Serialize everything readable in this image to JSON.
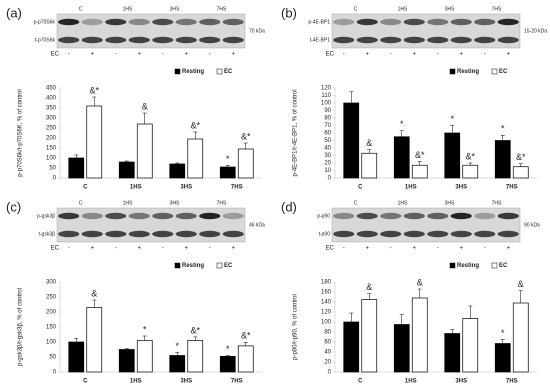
{
  "chart_data": [
    {
      "type": "bar",
      "panel": "(a)",
      "y_label": "p-p70S6k/t-p70S6K, % of control",
      "categories": [
        "C",
        "1HS",
        "3HS",
        "7HS"
      ],
      "series": [
        {
          "name": "Resting",
          "color": "#000000",
          "values": [
            100,
            80,
            70,
            55
          ],
          "errors": [
            15,
            5,
            5,
            8
          ],
          "annotations": [
            null,
            null,
            null,
            "*"
          ]
        },
        {
          "name": "EC",
          "color": "#ffffff",
          "values": [
            360,
            270,
            195,
            145
          ],
          "errors": [
            45,
            55,
            35,
            30
          ],
          "annotations": [
            "&*",
            "&",
            "&*",
            "&*"
          ]
        }
      ],
      "ylim": [
        0,
        450
      ],
      "yticks": [
        0,
        50,
        100,
        150,
        200,
        250,
        300,
        350,
        400,
        450
      ],
      "blot": {
        "rows": [
          "p-p70S6k",
          "t-p70S6k"
        ],
        "size": "70 kDa",
        "groups": [
          "C",
          "1HS",
          "3HS",
          "7HS"
        ],
        "treatment_label": "EC",
        "treatments": [
          "-",
          "+",
          "-",
          "+",
          "-",
          "+",
          "-",
          "+"
        ]
      }
    },
    {
      "type": "bar",
      "panel": "(b)",
      "y_label": "p-4E-BP1/t-4E-BP1, % of control",
      "categories": [
        "C",
        "1HS",
        "3HS",
        "7HS"
      ],
      "series": [
        {
          "name": "Resting",
          "color": "#000000",
          "values": [
            100,
            55,
            60,
            50
          ],
          "errors": [
            15,
            8,
            10,
            7
          ],
          "annotations": [
            null,
            "*",
            "*",
            "*"
          ]
        },
        {
          "name": "EC",
          "color": "#ffffff",
          "values": [
            33,
            17,
            17,
            15
          ],
          "errors": [
            5,
            5,
            3,
            4
          ],
          "annotations": [
            "&",
            "&*",
            "&*",
            "&*"
          ]
        }
      ],
      "ylim": [
        0,
        120
      ],
      "yticks": [
        0,
        10,
        20,
        30,
        40,
        50,
        60,
        70,
        80,
        90,
        100,
        110,
        120
      ],
      "blot": {
        "rows": [
          "p-4E-BP1",
          "t-4E-BP1"
        ],
        "size": "15-20 kDa",
        "groups": [
          "C",
          "1HS",
          "3HS",
          "7HS"
        ],
        "treatment_label": "EC",
        "treatments": [
          "-",
          "+",
          "-",
          "+",
          "-",
          "+",
          "-",
          "+"
        ]
      }
    },
    {
      "type": "bar",
      "panel": "(c)",
      "y_label": "p-gsk3β/t-gsk3β, % of control",
      "categories": [
        "C",
        "1HS",
        "3HS",
        "7HS"
      ],
      "series": [
        {
          "name": "Resting",
          "color": "#000000",
          "values": [
            100,
            75,
            55,
            52
          ],
          "errors": [
            12,
            3,
            10,
            3
          ],
          "annotations": [
            null,
            null,
            "*",
            "*"
          ]
        },
        {
          "name": "EC",
          "color": "#ffffff",
          "values": [
            215,
            105,
            105,
            87
          ],
          "errors": [
            25,
            15,
            12,
            12
          ],
          "annotations": [
            "&",
            "*",
            "&*",
            "&*"
          ]
        }
      ],
      "ylim": [
        0,
        300
      ],
      "yticks": [
        0,
        50,
        100,
        150,
        200,
        250,
        300
      ],
      "blot": {
        "rows": [
          "p-gsk3β",
          "t-gsk3β"
        ],
        "size": "46 kDa",
        "groups": [
          "C",
          "1HS",
          "3HS",
          "7HS"
        ],
        "treatment_label": "EC",
        "treatments": [
          "-",
          "+",
          "-",
          "+",
          "-",
          "+",
          "-",
          "+"
        ]
      }
    },
    {
      "type": "bar",
      "panel": "(d)",
      "y_label": "p-p90/t-p90, % of control",
      "categories": [
        "C",
        "1HS",
        "3HS",
        "7HS"
      ],
      "series": [
        {
          "name": "Resting",
          "color": "#000000",
          "values": [
            100,
            95,
            77,
            57
          ],
          "errors": [
            18,
            20,
            8,
            8
          ],
          "annotations": [
            null,
            null,
            null,
            "*"
          ]
        },
        {
          "name": "EC",
          "color": "#ffffff",
          "values": [
            145,
            148,
            107,
            138
          ],
          "errors": [
            12,
            18,
            25,
            25
          ],
          "annotations": [
            "&",
            "&",
            null,
            "&"
          ]
        }
      ],
      "ylim": [
        0,
        180
      ],
      "yticks": [
        0,
        20,
        40,
        60,
        80,
        100,
        120,
        140,
        160,
        180
      ],
      "blot": {
        "rows": [
          "p-p90",
          "t-p90"
        ],
        "size": "90 kDa",
        "groups": [
          "C",
          "1HS",
          "3HS",
          "7HS"
        ],
        "treatment_label": "EC",
        "treatments": [
          "-",
          "+",
          "-",
          "+",
          "-",
          "+",
          "-",
          "+"
        ]
      }
    }
  ]
}
